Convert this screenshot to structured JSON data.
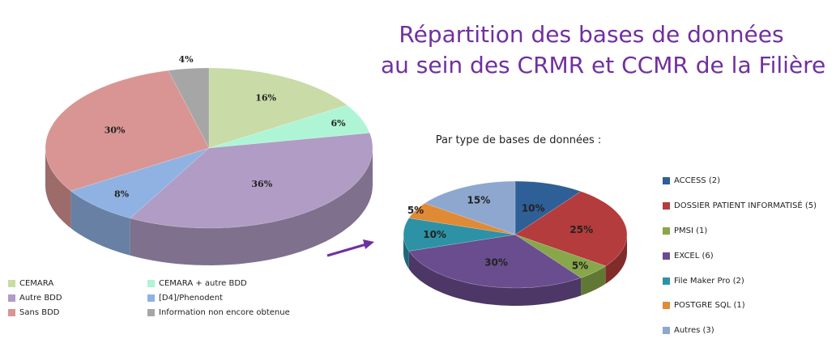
{
  "title_line1": "Répartition des bases de données",
  "title_line2": "au sein des CRMR et CCMR de la Filière",
  "chart_data": [
    {
      "type": "pie",
      "title": "",
      "slices": [
        {
          "name": "CEMARA",
          "value": 16,
          "label": "16%",
          "color": "#c9dba6"
        },
        {
          "name": "CEMARA + autre BDD",
          "value": 6,
          "label": "6%",
          "color": "#aef5d6"
        },
        {
          "name": "Autre BDD",
          "value": 36,
          "label": "36%",
          "color": "#b09cc4"
        },
        {
          "name": "[D4]/Phenodent",
          "value": 8,
          "label": "8%",
          "color": "#8fb2e3"
        },
        {
          "name": "Sans BDD",
          "value": 30,
          "label": "30%",
          "color": "#d99593"
        },
        {
          "name": "Information non encore obtenue",
          "value": 4,
          "label": "4%",
          "color": "#a6a6a6"
        }
      ],
      "legend": [
        "CEMARA",
        "CEMARA  + autre BDD",
        "Autre BDD",
        "[D4]/Phenodent",
        "Sans BDD",
        "Information non encore obtenue"
      ]
    },
    {
      "type": "pie",
      "title": "Par type de bases de données :",
      "slices": [
        {
          "name": "ACCESS (2)",
          "value": 10,
          "label": "10%",
          "color": "#2e5f96"
        },
        {
          "name": "DOSSIER PATIENT INFORMATISÉ (5)",
          "value": 25,
          "label": "25%",
          "color": "#b43c3c"
        },
        {
          "name": "PMSI (1)",
          "value": 5,
          "label": "5%",
          "color": "#87a74a"
        },
        {
          "name": "EXCEL (6)",
          "value": 30,
          "label": "30%",
          "color": "#6a4d8e"
        },
        {
          "name": "File Maker Pro (2)",
          "value": 10,
          "label": "10%",
          "color": "#2d92a6"
        },
        {
          "name": "POSTGRE SQL (1)",
          "value": 5,
          "label": "5%",
          "color": "#e08a36"
        },
        {
          "name": "Autres (3)",
          "value": 15,
          "label": "15%",
          "color": "#8ea7cf"
        }
      ],
      "legend": [
        "ACCESS (2)",
        "DOSSIER PATIENT INFORMATISÉ (5)",
        "PMSI (1)",
        "EXCEL (6)",
        "File Maker Pro (2)",
        "POSTGRE SQL (1)",
        "Autres (3)"
      ]
    }
  ],
  "colors": {
    "title": "#7030a0",
    "arrow": "#7030a0"
  }
}
